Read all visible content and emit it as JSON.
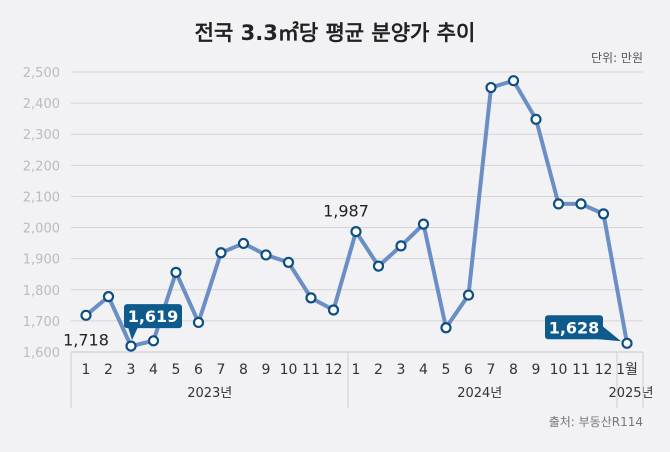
{
  "chart_data": {
    "type": "line",
    "title": "전국 3.3㎡당 평균 분양가 추이",
    "unit_label": "단위: 만원",
    "source": "출처: 부동산R114",
    "ylim": [
      1600,
      2500
    ],
    "y_ticks": [
      "1,600",
      "1,700",
      "1,800",
      "1,900",
      "2,000",
      "2,100",
      "2,200",
      "2,300",
      "2,400",
      "2,500"
    ],
    "y_tick_values": [
      1600,
      1700,
      1800,
      1900,
      2000,
      2100,
      2200,
      2300,
      2400,
      2500
    ],
    "grid": true,
    "categories": [
      "1",
      "2",
      "3",
      "4",
      "5",
      "6",
      "7",
      "8",
      "9",
      "10",
      "11",
      "12",
      "1",
      "2",
      "3",
      "4",
      "5",
      "6",
      "7",
      "8",
      "9",
      "10",
      "11",
      "12",
      "1월"
    ],
    "year_groups": [
      {
        "label": "2023년",
        "count": 12
      },
      {
        "label": "2024년",
        "count": 12
      },
      {
        "label": "2025년",
        "count": 1
      }
    ],
    "values": [
      1718,
      1778,
      1619,
      1636,
      1856,
      1695,
      1919,
      1949,
      1912,
      1888,
      1774,
      1735,
      1987,
      1876,
      1941,
      2011,
      1678,
      1783,
      2450,
      2472,
      2348,
      2076,
      2076,
      2044,
      1628
    ],
    "annotations": [
      {
        "index": 0,
        "text": "1,718",
        "style": "plain"
      },
      {
        "index": 2,
        "text": "1,619",
        "style": "callout"
      },
      {
        "index": 12,
        "text": "1,987",
        "style": "plain"
      },
      {
        "index": 24,
        "text": "1,628",
        "style": "callout"
      }
    ],
    "colors": {
      "line": "#6b8fc4",
      "marker_stroke": "#0d4f80",
      "callout": "#0d5a8c",
      "grid": "#d4d4d8",
      "tick": "#b8bcc4"
    }
  }
}
